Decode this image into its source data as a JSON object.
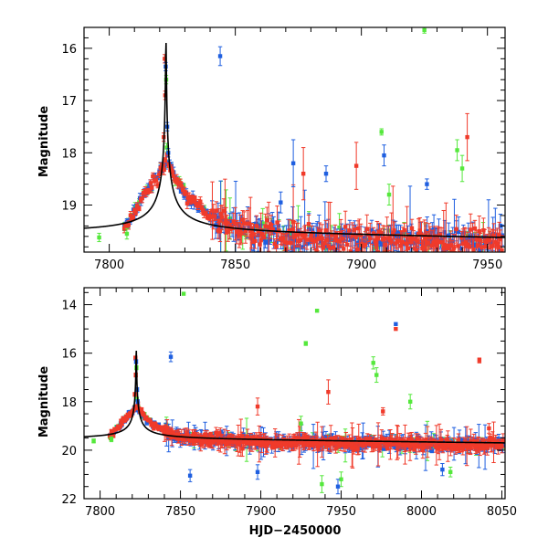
{
  "colors": {
    "blue": "#1f5fe0",
    "red": "#f03a2a",
    "green": "#55e83c",
    "model": "#000000",
    "frame": "#000000"
  },
  "chart_data": [
    {
      "type": "scatter",
      "panel": "top",
      "title": "",
      "xlabel": "",
      "ylabel": "Magnitude",
      "xlim": [
        7790,
        7957
      ],
      "ylim": [
        19.9,
        15.6
      ],
      "y_inverted": true,
      "x_ticks": [
        7800,
        7850,
        7900,
        7950
      ],
      "x_tick_labels": [
        "7800",
        "7850",
        "7900",
        "7950"
      ],
      "y_ticks": [
        16,
        17,
        18,
        19
      ],
      "y_tick_labels": [
        "16",
        "17",
        "18",
        "19"
      ],
      "model_curve": {
        "peak_x": 7822.5,
        "peak_mag": 15.8,
        "base_mag": 19.55,
        "time_scale": 4.5,
        "drift_per_day": 0.0012
      },
      "outliers": [
        {
          "series": "blue",
          "x": 7844,
          "y": 16.15,
          "err": 0.18
        },
        {
          "series": "blue",
          "x": 7873,
          "y": 18.2,
          "err": 0.45
        },
        {
          "series": "red",
          "x": 7877,
          "y": 18.4,
          "err": 0.5
        },
        {
          "series": "blue",
          "x": 7886,
          "y": 18.4,
          "err": 0.15
        },
        {
          "series": "red",
          "x": 7898,
          "y": 18.25,
          "err": 0.45
        },
        {
          "series": "green",
          "x": 7908,
          "y": 17.6,
          "err": 0.06
        },
        {
          "series": "blue",
          "x": 7909,
          "y": 18.05,
          "err": 0.2
        },
        {
          "series": "green",
          "x": 7925,
          "y": 15.65,
          "err": 0.06
        },
        {
          "series": "green",
          "x": 7938,
          "y": 17.95,
          "err": 0.2
        },
        {
          "series": "red",
          "x": 7942,
          "y": 17.7,
          "err": 0.45
        },
        {
          "series": "blue",
          "x": 7926,
          "y": 18.6,
          "err": 0.1
        },
        {
          "series": "green",
          "x": 7940,
          "y": 18.3,
          "err": 0.25
        },
        {
          "series": "green",
          "x": 7911,
          "y": 18.8,
          "err": 0.2
        },
        {
          "series": "blue",
          "x": 7868,
          "y": 18.95,
          "err": 0.2
        }
      ]
    },
    {
      "type": "scatter",
      "panel": "bottom",
      "title": "",
      "xlabel": "HJD−2450000",
      "ylabel": "Magnitude",
      "xlim": [
        7790,
        8052
      ],
      "ylim": [
        22.0,
        13.3
      ],
      "y_inverted": true,
      "x_ticks": [
        7800,
        7850,
        7900,
        7950,
        8000,
        8050
      ],
      "x_tick_labels": [
        "7800",
        "7850",
        "7900",
        "7950",
        "8000",
        "8050"
      ],
      "y_ticks": [
        14,
        16,
        18,
        20,
        22
      ],
      "y_tick_labels": [
        "14",
        "16",
        "18",
        "20",
        "22"
      ],
      "model_curve": {
        "peak_x": 7822.5,
        "peak_mag": 15.8,
        "base_mag": 19.55,
        "time_scale": 4.5,
        "drift_per_day": 0.0012
      },
      "outliers": [
        {
          "series": "green",
          "x": 7852,
          "y": 13.55,
          "err": 0.05
        },
        {
          "series": "blue",
          "x": 7844,
          "y": 16.15,
          "err": 0.2
        },
        {
          "series": "green",
          "x": 7935,
          "y": 14.25,
          "err": 0.05
        },
        {
          "series": "green",
          "x": 7928,
          "y": 15.6,
          "err": 0.08
        },
        {
          "series": "blue",
          "x": 7984,
          "y": 14.8,
          "err": 0.05
        },
        {
          "series": "red",
          "x": 7984,
          "y": 15.0,
          "err": 0.05
        },
        {
          "series": "green",
          "x": 7970,
          "y": 16.4,
          "err": 0.25
        },
        {
          "series": "green",
          "x": 7972,
          "y": 16.9,
          "err": 0.3
        },
        {
          "series": "red",
          "x": 8036,
          "y": 16.3,
          "err": 0.1
        },
        {
          "series": "red",
          "x": 7942,
          "y": 17.6,
          "err": 0.5
        },
        {
          "series": "red",
          "x": 7898,
          "y": 18.2,
          "err": 0.35
        },
        {
          "series": "green",
          "x": 7925,
          "y": 18.9,
          "err": 0.3
        },
        {
          "series": "red",
          "x": 7976,
          "y": 18.4,
          "err": 0.15
        },
        {
          "series": "green",
          "x": 7993,
          "y": 18.0,
          "err": 0.3
        },
        {
          "series": "green",
          "x": 7938,
          "y": 21.4,
          "err": 0.35
        },
        {
          "series": "green",
          "x": 7950,
          "y": 21.2,
          "err": 0.3
        },
        {
          "series": "blue",
          "x": 7948,
          "y": 21.5,
          "err": 0.3
        },
        {
          "series": "blue",
          "x": 8013,
          "y": 20.8,
          "err": 0.25
        },
        {
          "series": "green",
          "x": 8018,
          "y": 20.9,
          "err": 0.2
        },
        {
          "series": "red",
          "x": 8042,
          "y": 19.1,
          "err": 0.2
        },
        {
          "series": "blue",
          "x": 7856,
          "y": 21.05,
          "err": 0.25
        },
        {
          "series": "blue",
          "x": 7898,
          "y": 20.9,
          "err": 0.3
        }
      ]
    }
  ]
}
